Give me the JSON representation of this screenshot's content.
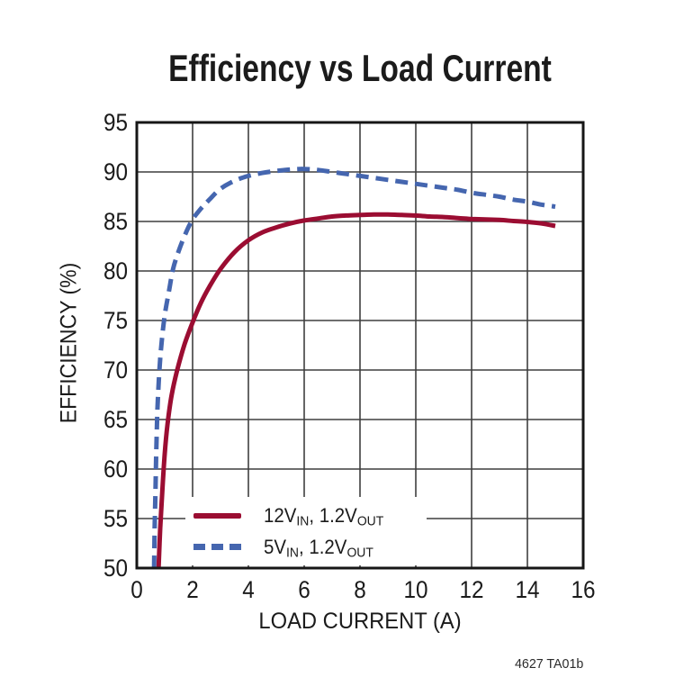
{
  "chart": {
    "title": "Efficiency vs Load Current",
    "xlabel": "LOAD CURRENT (A)",
    "ylabel": "EFFICIENCY (%)",
    "note": "4627 TA01b"
  },
  "legend": {
    "series": [
      {
        "main1": "12V",
        "sub1": "IN",
        "main2": ", 1.2V",
        "sub2": "OUT"
      },
      {
        "main1": "5V",
        "sub1": "IN",
        "main2": ", 1.2V",
        "sub2": "OUT"
      }
    ]
  },
  "colors": {
    "red": "#9B0D32",
    "blue": "#4566AF",
    "grid": "#3F3F3F",
    "axis": "#161616",
    "background": "#FFFFFF"
  },
  "chart_data": {
    "type": "line",
    "title": "Efficiency vs Load Current",
    "xlabel": "LOAD CURRENT (A)",
    "ylabel": "EFFICIENCY (%)",
    "xlim": [
      0,
      16
    ],
    "ylim": [
      50,
      95
    ],
    "x_ticks": [
      0,
      2,
      4,
      6,
      8,
      10,
      12,
      14,
      16
    ],
    "y_ticks": [
      50,
      55,
      60,
      65,
      70,
      75,
      80,
      85,
      90,
      95
    ],
    "grid": true,
    "legend_position": "inside lower-left",
    "series": [
      {
        "name": "12VIN, 1.2VOUT",
        "style": "solid",
        "color": "#9B0D32",
        "points": [
          [
            0.78,
            50
          ],
          [
            0.84,
            54
          ],
          [
            0.92,
            58
          ],
          [
            1.0,
            61.5
          ],
          [
            1.1,
            64.5
          ],
          [
            1.25,
            67.5
          ],
          [
            1.45,
            70
          ],
          [
            1.7,
            72.5
          ],
          [
            2.0,
            74.8
          ],
          [
            2.3,
            76.8
          ],
          [
            2.6,
            78.4
          ],
          [
            3.0,
            80.2
          ],
          [
            3.5,
            81.9
          ],
          [
            4.0,
            83.1
          ],
          [
            4.5,
            83.9
          ],
          [
            5.0,
            84.4
          ],
          [
            5.5,
            84.8
          ],
          [
            6.0,
            85.1
          ],
          [
            6.5,
            85.3
          ],
          [
            7.0,
            85.5
          ],
          [
            7.5,
            85.6
          ],
          [
            8.0,
            85.65
          ],
          [
            8.5,
            85.7
          ],
          [
            9.0,
            85.7
          ],
          [
            9.5,
            85.65
          ],
          [
            10,
            85.6
          ],
          [
            10.5,
            85.5
          ],
          [
            11,
            85.45
          ],
          [
            11.5,
            85.35
          ],
          [
            12,
            85.25
          ],
          [
            12.5,
            85.2
          ],
          [
            13,
            85.15
          ],
          [
            13.5,
            85.05
          ],
          [
            14,
            84.95
          ],
          [
            14.5,
            84.8
          ],
          [
            15,
            84.55
          ]
        ]
      },
      {
        "name": "5VIN, 1.2VOUT",
        "style": "dashed",
        "color": "#4566AF",
        "points": [
          [
            0.62,
            50
          ],
          [
            0.64,
            54
          ],
          [
            0.67,
            58
          ],
          [
            0.7,
            62
          ],
          [
            0.74,
            66
          ],
          [
            0.8,
            69.5
          ],
          [
            0.88,
            72.5
          ],
          [
            1.0,
            75.5
          ],
          [
            1.15,
            77.9
          ],
          [
            1.3,
            80.2
          ],
          [
            1.5,
            82
          ],
          [
            1.75,
            83.8
          ],
          [
            2.0,
            85.2
          ],
          [
            2.3,
            86.3
          ],
          [
            2.6,
            87.2
          ],
          [
            3.0,
            88.3
          ],
          [
            3.5,
            89.1
          ],
          [
            4.0,
            89.6
          ],
          [
            4.5,
            89.9
          ],
          [
            5.0,
            90.1
          ],
          [
            5.5,
            90.25
          ],
          [
            6.0,
            90.3
          ],
          [
            6.5,
            90.2
          ],
          [
            7.0,
            90.0
          ],
          [
            7.5,
            89.8
          ],
          [
            8.0,
            89.6
          ],
          [
            8.5,
            89.4
          ],
          [
            9.0,
            89.2
          ],
          [
            9.5,
            89.0
          ],
          [
            10,
            88.8
          ],
          [
            10.5,
            88.6
          ],
          [
            11,
            88.4
          ],
          [
            11.5,
            88.2
          ],
          [
            12,
            87.9
          ],
          [
            12.5,
            87.7
          ],
          [
            13,
            87.5
          ],
          [
            13.5,
            87.2
          ],
          [
            14,
            87.0
          ],
          [
            14.5,
            86.7
          ],
          [
            15,
            86.5
          ]
        ]
      }
    ]
  }
}
